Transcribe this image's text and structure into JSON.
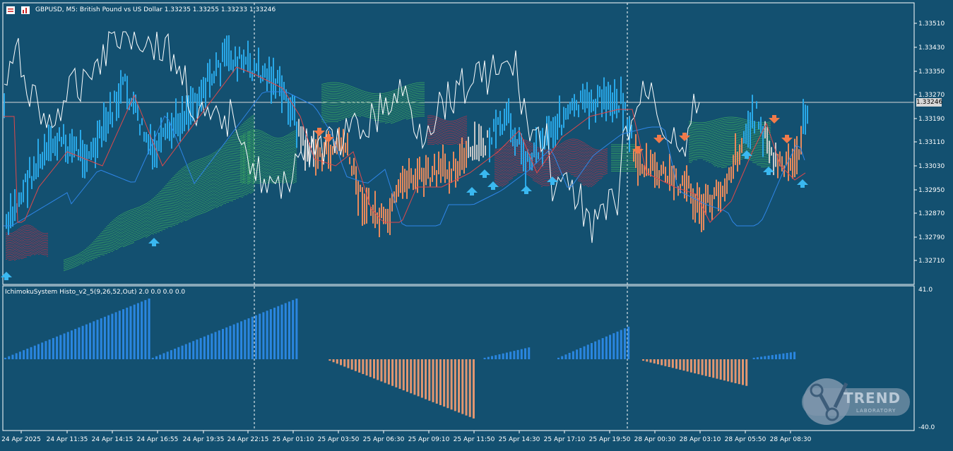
{
  "header": {
    "title": "GBPUSD, M5:  British Pound vs US Dollar  1.33235 1.33255 1.33233 1.33246"
  },
  "indicator": {
    "label": "IchimokuSystem Histo_v2_5(9,26,52,Out) 2.0 0.0 0.0 0.0",
    "max_label": "41.0",
    "min_label": "-40.0"
  },
  "price_axis": {
    "ticks": [
      "1.33510",
      "1.33430",
      "1.33350",
      "1.33270",
      "1.33190",
      "1.33110",
      "1.33030",
      "1.32950",
      "1.32870",
      "1.32790",
      "1.32710"
    ],
    "current_price": "1.33246"
  },
  "time_axis": {
    "ticks": [
      "24 Apr 2025",
      "24 Apr 11:35",
      "24 Apr 14:15",
      "24 Apr 16:55",
      "24 Apr 19:35",
      "24 Apr 22:15",
      "25 Apr 01:10",
      "25 Apr 03:50",
      "25 Apr 06:30",
      "25 Apr 09:10",
      "25 Apr 11:50",
      "25 Apr 14:30",
      "25 Apr 17:10",
      "25 Apr 19:50",
      "28 Apr 00:30",
      "28 Apr 03:10",
      "28 Apr 05:50",
      "28 Apr 08:30"
    ]
  },
  "logo": {
    "brand": "TREND",
    "sub": "LABORATORY"
  },
  "colors": {
    "background": "#135070",
    "bull": "#29a8e8",
    "bear": "#e88a5c",
    "neutral": "#c8c8c8",
    "cloud_up": "#3aa860",
    "cloud_down": "#b0304a",
    "histo_up": "#2a86e0",
    "histo_down": "#e39670"
  },
  "chart_data": {
    "type": "bar",
    "title": "IchimokuSystem Histo_v2_5(9,26,52,Out)",
    "ylim": [
      -40.0,
      41.0
    ],
    "segments": [
      {
        "name": "up",
        "start": 0,
        "end": 40,
        "from": 1,
        "to": 41
      },
      {
        "name": "up",
        "start": 40,
        "end": 80,
        "from": 1,
        "to": 41
      },
      {
        "name": "down",
        "start": 88,
        "end": 128,
        "from": -1,
        "to": -40
      },
      {
        "name": "up",
        "start": 130,
        "end": 143,
        "from": 1,
        "to": 8
      },
      {
        "name": "up",
        "start": 150,
        "end": 170,
        "from": 1,
        "to": 22
      },
      {
        "name": "down",
        "start": 173,
        "end": 202,
        "from": -1,
        "to": -18
      },
      {
        "name": "up",
        "start": 203,
        "end": 215,
        "from": 1,
        "to": 5
      }
    ]
  }
}
